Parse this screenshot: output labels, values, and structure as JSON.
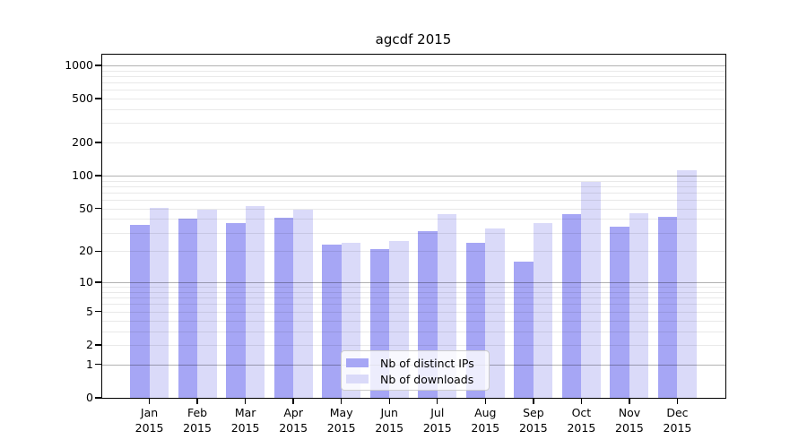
{
  "chart_data": {
    "type": "bar",
    "title": "agcdf 2015",
    "categories": [
      "Jan 2015",
      "Feb 2015",
      "Mar 2015",
      "Apr 2015",
      "May 2015",
      "Jun 2015",
      "Jul 2015",
      "Aug 2015",
      "Sep 2015",
      "Oct 2015",
      "Nov 2015",
      "Dec 2015"
    ],
    "series": [
      {
        "name": "Nb of distinct IPs",
        "color": "#a6a6f5",
        "values": [
          35,
          40,
          37,
          41,
          23,
          21,
          31,
          24,
          16,
          44,
          34,
          42
        ]
      },
      {
        "name": "Nb of downloads",
        "color": "#dadaf9",
        "values": [
          51,
          49,
          53,
          49,
          24,
          25,
          44,
          33,
          37,
          87,
          45,
          112
        ]
      }
    ],
    "xlabel": "",
    "ylabel": "",
    "yscale": "log1p",
    "yticks": [
      "0",
      "1",
      "2",
      "5",
      "10",
      "20",
      "50",
      "100",
      "200",
      "500",
      "1000"
    ],
    "ylim": [
      0,
      1100
    ],
    "grid": "on",
    "grid_minor_values": [
      2,
      3,
      4,
      5,
      6,
      7,
      8,
      9,
      20,
      30,
      40,
      50,
      60,
      70,
      80,
      90,
      200,
      300,
      400,
      500,
      600,
      700,
      800,
      900
    ],
    "grid_major_values": [
      1,
      10,
      100,
      1000
    ],
    "legend_position": "lower center",
    "colors": {
      "background": "#ffffff",
      "axis": "#000000",
      "grid_major": "rgba(0,0,0,0.30)",
      "grid_minor": "rgba(0,0,0,0.085)",
      "legend_background": "rgba(255,255,255,0.8)",
      "legend_border": "#cccccc"
    }
  }
}
